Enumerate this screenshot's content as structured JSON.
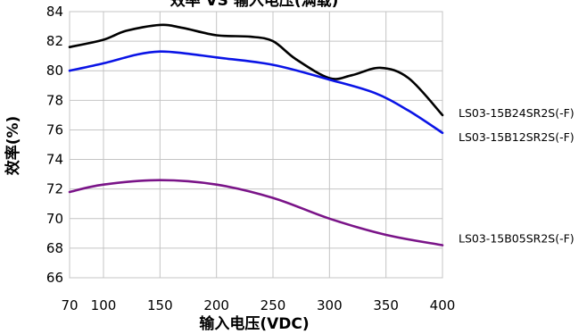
{
  "chart_data": {
    "type": "line",
    "title": "效率 VS 输入电压(满载)",
    "xlabel": "输入电压(VDC)",
    "ylabel": "效率(%)",
    "xlim": [
      70,
      400
    ],
    "ylim": [
      66,
      84
    ],
    "xticks": [
      70,
      100,
      150,
      200,
      250,
      300,
      350,
      400
    ],
    "yticks": [
      66,
      68,
      70,
      72,
      74,
      76,
      78,
      80,
      82,
      84
    ],
    "grid": true,
    "legend": "none",
    "series": [
      {
        "name": "LS03-15B24SR2S(-F)",
        "color": "#000000",
        "x": [
          70,
          100,
          120,
          150,
          170,
          200,
          230,
          250,
          270,
          300,
          320,
          345,
          370,
          400
        ],
        "y": [
          81.6,
          82.1,
          82.7,
          83.1,
          82.9,
          82.4,
          82.3,
          82.0,
          80.8,
          79.5,
          79.7,
          80.2,
          79.5,
          77.0
        ]
      },
      {
        "name": "LS03-15B12SR2S(-F)",
        "color": "#0a14e6",
        "x": [
          70,
          100,
          130,
          150,
          170,
          200,
          250,
          300,
          340,
          370,
          400
        ],
        "y": [
          80.0,
          80.5,
          81.1,
          81.3,
          81.2,
          80.9,
          80.4,
          79.4,
          78.5,
          77.3,
          75.8
        ]
      },
      {
        "name": "LS03-15B05SR2S(-F)",
        "color": "#7a1488",
        "x": [
          70,
          100,
          150,
          200,
          250,
          300,
          350,
          400
        ],
        "y": [
          71.8,
          72.3,
          72.6,
          72.3,
          71.4,
          70.0,
          68.9,
          68.2
        ]
      }
    ]
  }
}
